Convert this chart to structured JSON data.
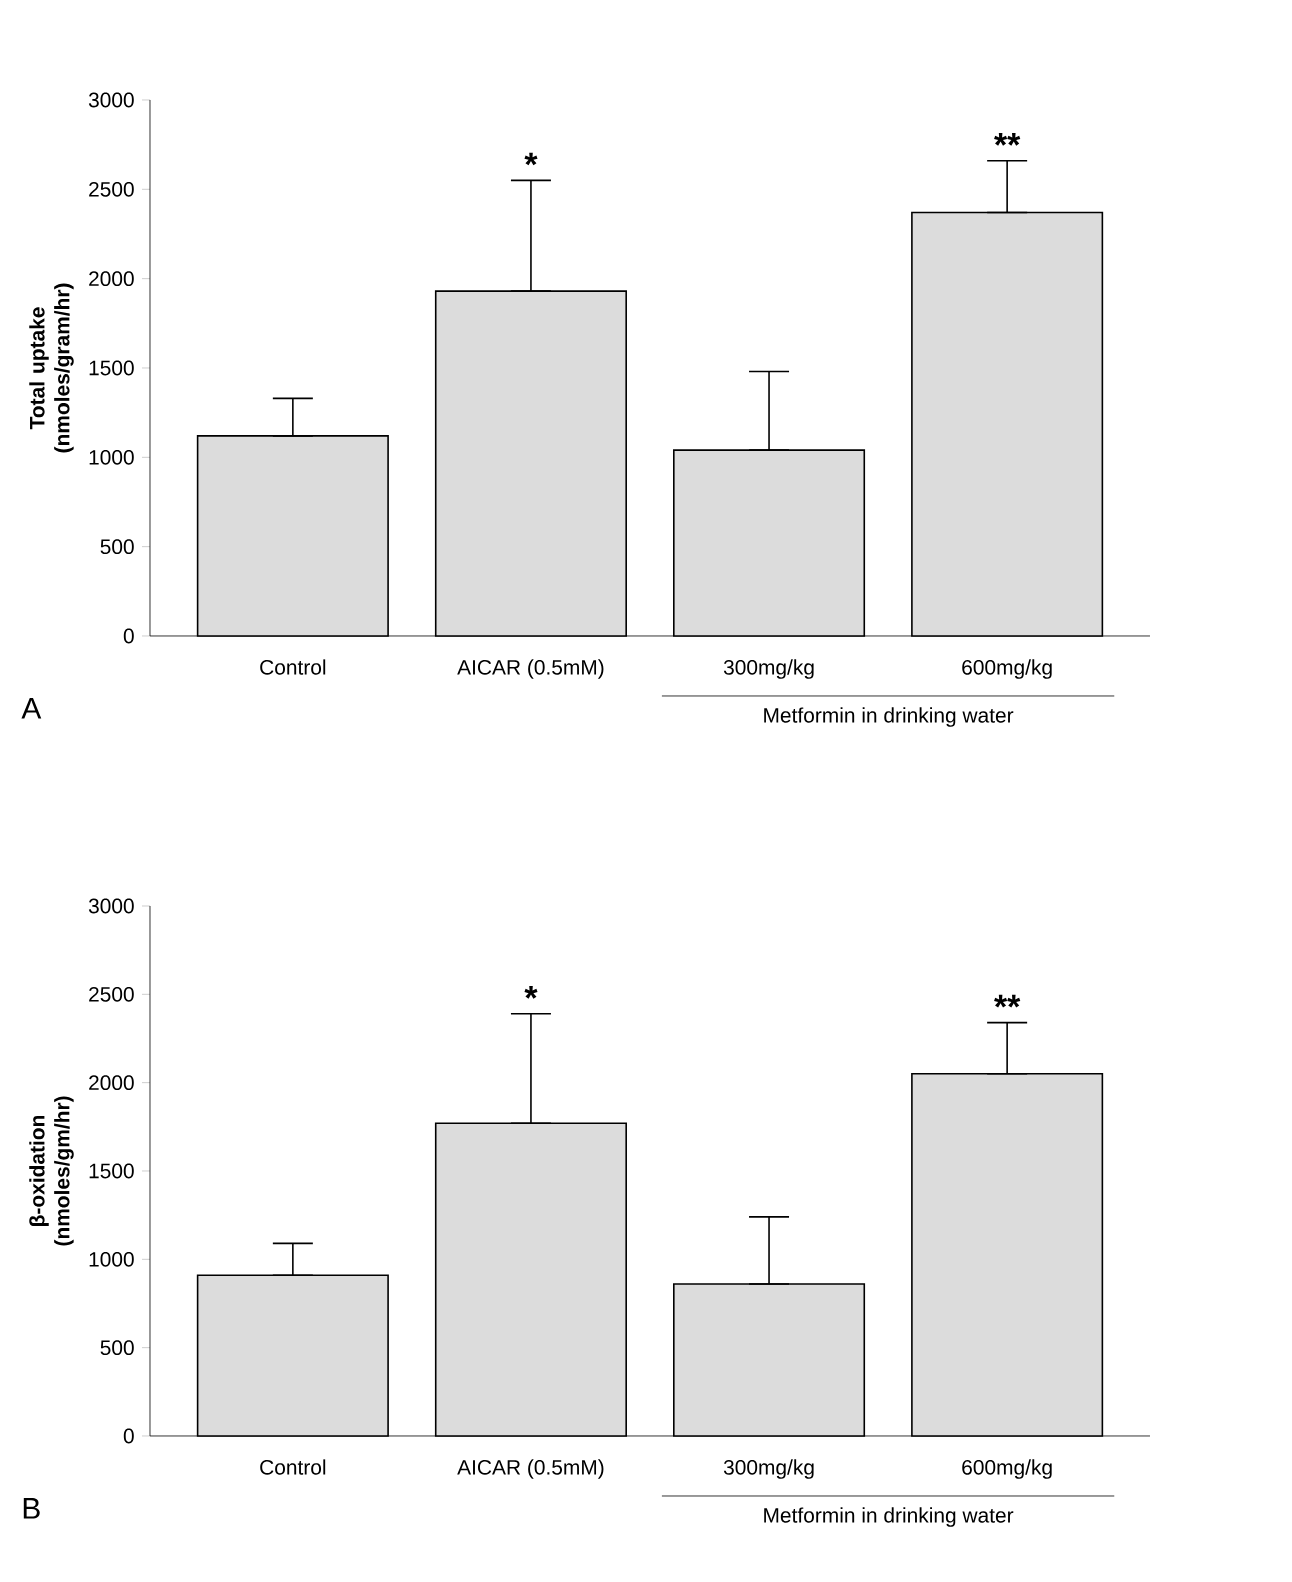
{
  "chart_data": [
    {
      "type": "bar",
      "title": "A",
      "ylabel": "Total uptake (nmoles/gram/hr)",
      "categories": [
        "Control",
        "AICAR (0.5mM)",
        "300mg/kg",
        "600mg/kg"
      ],
      "values": [
        1120,
        1930,
        1040,
        2370
      ],
      "errors": [
        [
          1120,
          1330
        ],
        [
          1930,
          2550
        ],
        [
          1040,
          1480
        ],
        [
          2370,
          2660
        ]
      ],
      "color": "#dcdcdc",
      "ylim": [
        0,
        3000
      ],
      "yticks": [
        0,
        500,
        1000,
        1500,
        2000,
        2500,
        3000
      ],
      "annotations": [
        "*",
        "**",
        "Metformin in drinking water"
      ]
    },
    {
      "type": "bar",
      "title": "B",
      "ylabel": "β-oxidation (nmoles/gm/hr)",
      "categories": [
        "Control",
        "AICAR (0.5mM)",
        "300mg/kg",
        "600mg/kg"
      ],
      "values": [
        910,
        1770,
        860,
        2050
      ],
      "errors": [
        [
          910,
          1090
        ],
        [
          1770,
          2390
        ],
        [
          860,
          1240
        ],
        [
          2050,
          2340
        ]
      ],
      "color": "#dcdcdc",
      "ylim": [
        0,
        3000
      ],
      "yticks": [
        0,
        500,
        1000,
        1500,
        2000,
        2500,
        3000
      ],
      "annotations": [
        "*",
        "**",
        "Metformin in drinking water"
      ]
    }
  ]
}
